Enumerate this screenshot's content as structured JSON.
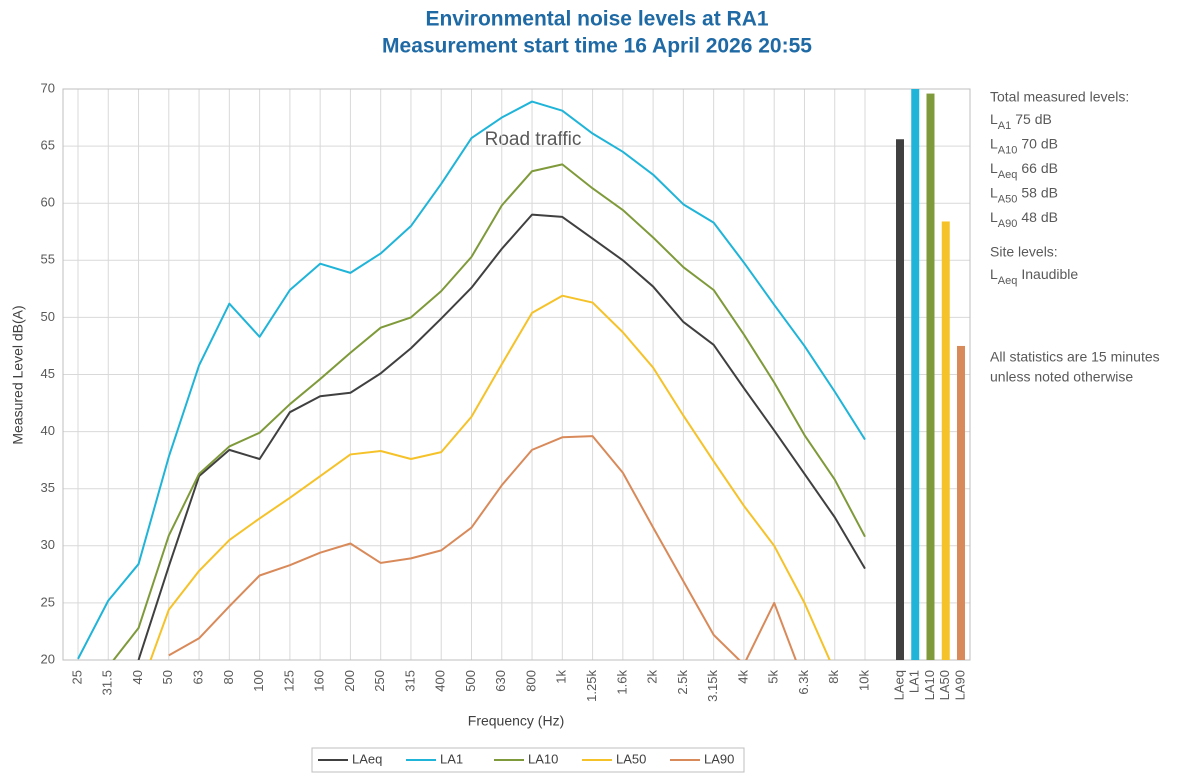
{
  "chart_data": {
    "type": "line",
    "title": "Environmental noise levels at RA1",
    "subtitle": "Measurement start time 16 April 2026 20:55",
    "y_label": "Measured Level dB(A)",
    "x_label": "Frequency (Hz)",
    "annotation": "Road traffic",
    "categories": [
      "25",
      "31.5",
      "40",
      "50",
      "63",
      "80",
      "100",
      "125",
      "160",
      "200",
      "250",
      "315",
      "400",
      "500",
      "630",
      "800",
      "1k",
      "1.25k",
      "1.6k",
      "2k",
      "2.5k",
      "3.15k",
      "4k",
      "5k",
      "6.3k",
      "8k",
      "10k"
    ],
    "series": [
      {
        "name": "LAeq",
        "color": "#404040",
        "values": [
          null,
          null,
          20,
          28.2,
          36.1,
          38.4,
          37.6,
          41.7,
          43.1,
          43.4,
          45.1,
          47.3,
          49.9,
          52.6,
          56,
          59,
          58.8,
          56.9,
          55,
          52.7,
          49.6,
          47.6,
          43.8,
          40.1,
          36.3,
          32.5,
          28
        ]
      },
      {
        "name": "LA1",
        "color": "#1fb4d8",
        "values": [
          20.1,
          25.2,
          28.4,
          37.8,
          45.8,
          51.2,
          48.3,
          52.4,
          54.7,
          53.9,
          55.6,
          58,
          61.7,
          65.7,
          67.5,
          68.9,
          68.1,
          66.1,
          64.5,
          62.5,
          59.9,
          58.3,
          54.8,
          51.1,
          47.5,
          43.5,
          39.3
        ]
      },
      {
        "name": "LA10",
        "color": "#7f9a3a",
        "values": [
          null,
          19.4,
          22.8,
          30.9,
          36.3,
          38.7,
          39.9,
          42.4,
          44.6,
          46.9,
          49.1,
          50,
          52.3,
          55.3,
          59.8,
          62.8,
          63.4,
          61.3,
          59.4,
          57,
          54.4,
          52.4,
          48.5,
          44.3,
          39.7,
          35.8,
          30.8
        ]
      },
      {
        "name": "LA50",
        "color": "#f5c22a",
        "values": [
          null,
          null,
          17.1,
          24.4,
          27.8,
          30.5,
          32.4,
          34.2,
          36.1,
          38,
          38.3,
          37.6,
          38.2,
          41.3,
          45.9,
          50.4,
          51.9,
          51.3,
          48.7,
          45.6,
          41.4,
          37.4,
          33.5,
          30,
          25,
          19,
          null
        ]
      },
      {
        "name": "LA90",
        "color": "#d98a5a",
        "values": [
          null,
          null,
          null,
          20.4,
          21.9,
          24.7,
          27.4,
          28.3,
          29.4,
          30.2,
          28.5,
          28.9,
          29.6,
          31.6,
          35.3,
          38.4,
          39.5,
          39.6,
          36.4,
          31.6,
          26.9,
          22.2,
          19.6,
          25,
          18,
          null,
          null
        ]
      }
    ],
    "totals": {
      "categories": [
        "LAeq",
        "LA1",
        "LA10",
        "LA50",
        "LA90"
      ],
      "values": [
        65.6,
        75,
        69.6,
        58.4,
        47.5
      ],
      "colors": [
        "#404040",
        "#1fb4d8",
        "#7f9a3a",
        "#f5c22a",
        "#d98a5a"
      ]
    },
    "ylim": [
      20,
      70
    ],
    "yticks": [
      20,
      25,
      30,
      35,
      40,
      45,
      50,
      55,
      60,
      65,
      70
    ],
    "grid": true,
    "side_panel": {
      "heading": "Total measured levels:",
      "items": [
        {
          "symbol": "L",
          "subscript": "A1",
          "text": "75 dB"
        },
        {
          "symbol": "L",
          "subscript": "A10",
          "text": "70 dB"
        },
        {
          "symbol": "L",
          "subscript": "Aeq",
          "text": "66 dB"
        },
        {
          "symbol": "L",
          "subscript": "A50",
          "text": "58 dB"
        },
        {
          "symbol": "L",
          "subscript": "A90",
          "text": "48 dB"
        }
      ],
      "site_heading": "Site levels:",
      "site_items": [
        {
          "symbol": "L",
          "subscript": "Aeq",
          "text": "Inaudible"
        }
      ],
      "note": [
        "All statistics are 15 minutes",
        "unless noted otherwise"
      ]
    }
  }
}
